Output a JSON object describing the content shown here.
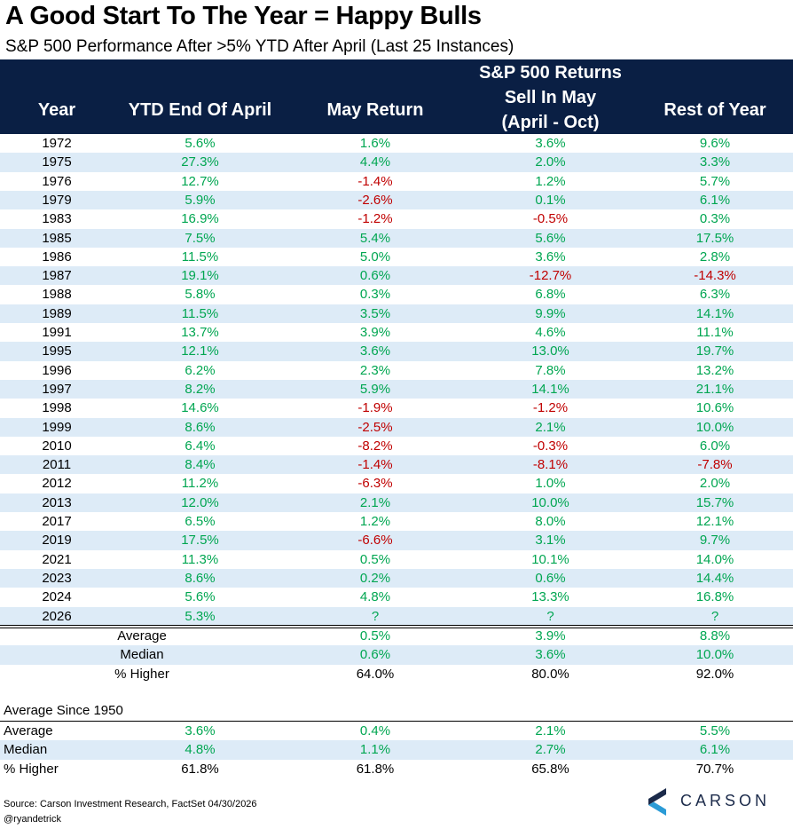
{
  "title": "A Good Start To The Year = Happy Bulls",
  "subtitle": "S&P 500 Performance After >5% YTD After April (Last 25 Instances)",
  "header": {
    "year": "Year",
    "ytd": "YTD End Of April",
    "may": "May Return",
    "group": "S&P 500 Returns",
    "sell_line1": "Sell In May",
    "sell_line2": "(April - Oct)",
    "rest": "Rest of Year"
  },
  "chart_data": {
    "type": "table",
    "title": "A Good Start To The Year = Happy Bulls",
    "subtitle": "S&P 500 Performance After >5% YTD After April (Last 25 Instances)",
    "columns": [
      "Year",
      "YTD End Of April",
      "May Return",
      "Sell In May (April - Oct)",
      "Rest of Year"
    ],
    "rows": [
      [
        "1972",
        "5.6%",
        "1.6%",
        "3.6%",
        "9.6%"
      ],
      [
        "1975",
        "27.3%",
        "4.4%",
        "2.0%",
        "3.3%"
      ],
      [
        "1976",
        "12.7%",
        "-1.4%",
        "1.2%",
        "5.7%"
      ],
      [
        "1979",
        "5.9%",
        "-2.6%",
        "0.1%",
        "6.1%"
      ],
      [
        "1983",
        "16.9%",
        "-1.2%",
        "-0.5%",
        "0.3%"
      ],
      [
        "1985",
        "7.5%",
        "5.4%",
        "5.6%",
        "17.5%"
      ],
      [
        "1986",
        "11.5%",
        "5.0%",
        "3.6%",
        "2.8%"
      ],
      [
        "1987",
        "19.1%",
        "0.6%",
        "-12.7%",
        "-14.3%"
      ],
      [
        "1988",
        "5.8%",
        "0.3%",
        "6.8%",
        "6.3%"
      ],
      [
        "1989",
        "11.5%",
        "3.5%",
        "9.9%",
        "14.1%"
      ],
      [
        "1991",
        "13.7%",
        "3.9%",
        "4.6%",
        "11.1%"
      ],
      [
        "1995",
        "12.1%",
        "3.6%",
        "13.0%",
        "19.7%"
      ],
      [
        "1996",
        "6.2%",
        "2.3%",
        "7.8%",
        "13.2%"
      ],
      [
        "1997",
        "8.2%",
        "5.9%",
        "14.1%",
        "21.1%"
      ],
      [
        "1998",
        "14.6%",
        "-1.9%",
        "-1.2%",
        "10.6%"
      ],
      [
        "1999",
        "8.6%",
        "-2.5%",
        "2.1%",
        "10.0%"
      ],
      [
        "2010",
        "6.4%",
        "-8.2%",
        "-0.3%",
        "6.0%"
      ],
      [
        "2011",
        "8.4%",
        "-1.4%",
        "-8.1%",
        "-7.8%"
      ],
      [
        "2012",
        "11.2%",
        "-6.3%",
        "1.0%",
        "2.0%"
      ],
      [
        "2013",
        "12.0%",
        "2.1%",
        "10.0%",
        "15.7%"
      ],
      [
        "2017",
        "6.5%",
        "1.2%",
        "8.0%",
        "12.1%"
      ],
      [
        "2019",
        "17.5%",
        "-6.6%",
        "3.1%",
        "9.7%"
      ],
      [
        "2021",
        "11.3%",
        "0.5%",
        "10.1%",
        "14.0%"
      ],
      [
        "2023",
        "8.6%",
        "0.2%",
        "0.6%",
        "14.4%"
      ],
      [
        "2024",
        "5.6%",
        "4.8%",
        "13.3%",
        "16.8%"
      ],
      [
        "2026",
        "5.3%",
        "?",
        "?",
        "?"
      ]
    ],
    "summary": [
      {
        "label": "Average",
        "may": "0.5%",
        "sell": "3.9%",
        "rest": "8.8%"
      },
      {
        "label": "Median",
        "may": "0.6%",
        "sell": "3.6%",
        "rest": "10.0%"
      },
      {
        "label": "% Higher",
        "may": "64.0%",
        "sell": "80.0%",
        "rest": "92.0%"
      }
    ],
    "since_1950": {
      "title": "Average Since 1950",
      "rows": [
        {
          "label": "Average",
          "ytd": "3.6%",
          "may": "0.4%",
          "sell": "2.1%",
          "rest": "5.5%"
        },
        {
          "label": "Median",
          "ytd": "4.8%",
          "may": "1.1%",
          "sell": "2.7%",
          "rest": "6.1%"
        },
        {
          "label": "% Higher",
          "ytd": "61.8%",
          "may": "61.8%",
          "sell": "65.8%",
          "rest": "70.7%"
        }
      ]
    }
  },
  "colors": {
    "header_bg": "#0a1f44",
    "row_shade": "#ddebf7",
    "positive": "#00a651",
    "negative": "#c00000"
  },
  "footer": {
    "source": "Source: Carson Investment Research, FactSet 04/30/2026",
    "handle": "@ryandetrick",
    "logo_text": "CARSON",
    "logo_icon": "carson-chevron-icon"
  }
}
